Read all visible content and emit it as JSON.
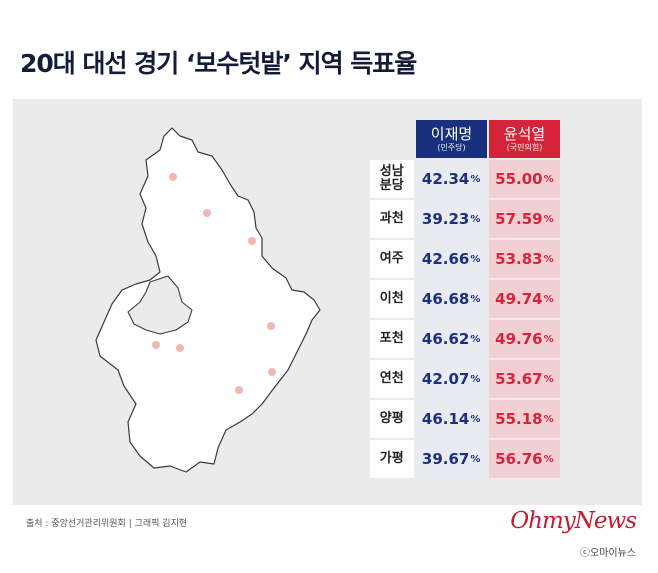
{
  "title": "20대 대선 경기 ‘보수텃밭’ 지역 득표율",
  "table": {
    "headers": [
      {
        "name": "이재명",
        "party": "(민주당)"
      },
      {
        "name": "윤석열",
        "party": "(국민의힘)"
      }
    ],
    "rows": [
      {
        "region": [
          "성남",
          "분당"
        ],
        "lee": "42.34",
        "yoon": "55.00"
      },
      {
        "region": [
          "과천"
        ],
        "lee": "39.23",
        "yoon": "57.59"
      },
      {
        "region": [
          "여주"
        ],
        "lee": "42.66",
        "yoon": "53.83"
      },
      {
        "region": [
          "이천"
        ],
        "lee": "46.68",
        "yoon": "49.74"
      },
      {
        "region": [
          "포천"
        ],
        "lee": "46.62",
        "yoon": "49.76"
      },
      {
        "region": [
          "연천"
        ],
        "lee": "42.07",
        "yoon": "53.67"
      },
      {
        "region": [
          "양평"
        ],
        "lee": "46.14",
        "yoon": "55.18"
      },
      {
        "region": [
          "가평"
        ],
        "lee": "39.67",
        "yoon": "56.76"
      }
    ],
    "percent_sign": "%"
  },
  "map": {
    "fill": "#ffffff",
    "stroke": "#3a3a3a",
    "marker_color": "#f0b8b2",
    "marker_count": 8
  },
  "colors": {
    "lee": "#18307e",
    "yoon": "#d5243a",
    "title": "#141c3a",
    "panel": "#ebebeb"
  },
  "source": "출처 : 중앙선거관리위원회 | 그래픽 김지현",
  "brand": "OhmyNews",
  "credit": "ⓒ오마이뉴스"
}
